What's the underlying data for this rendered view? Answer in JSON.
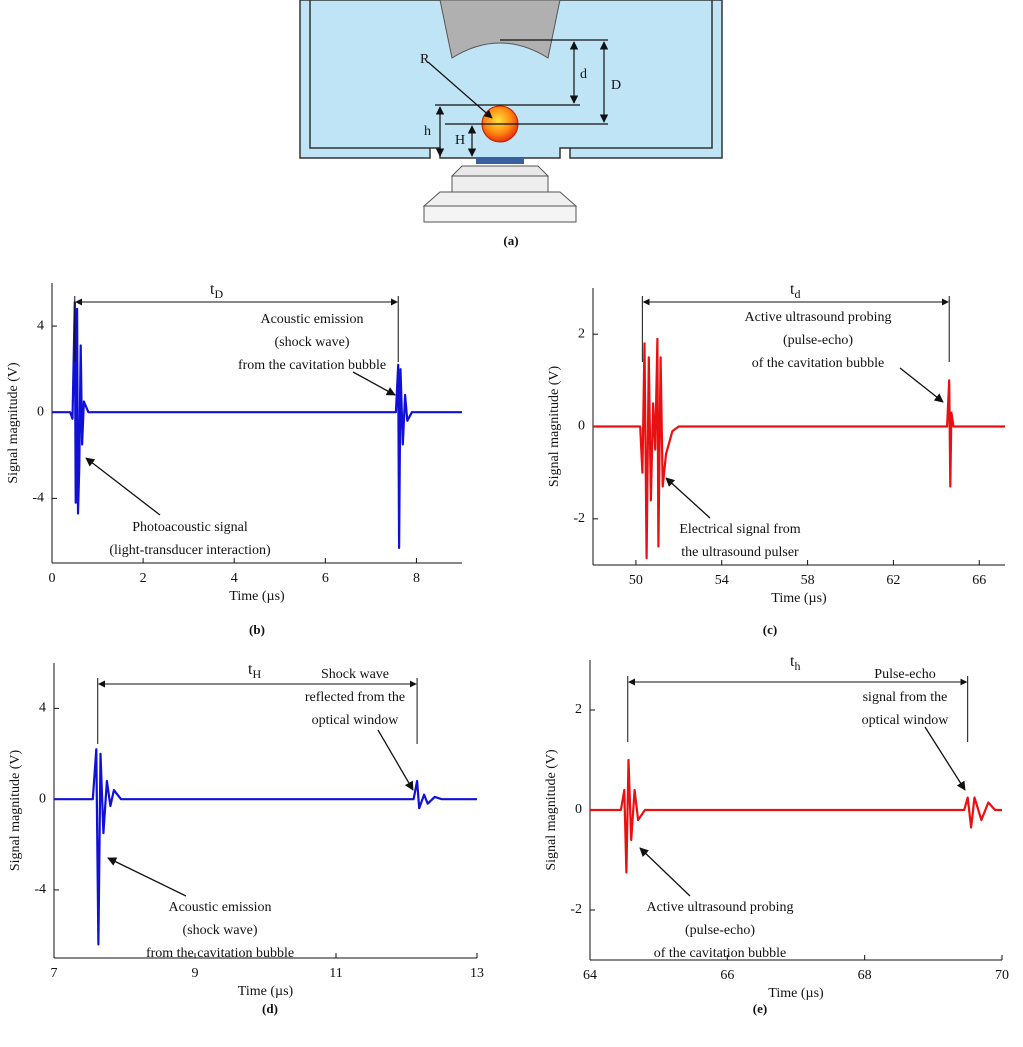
{
  "diagram": {
    "labels": [
      "R",
      "d",
      "D",
      "h",
      "H"
    ],
    "caption": "(a)"
  },
  "chart_data": [
    {
      "type": "line",
      "caption": "(b)",
      "xlabel": "Time (µs)",
      "ylabel": "Signal magnitude (V)",
      "xlim": [
        0,
        9
      ],
      "xticks": [
        0,
        2,
        4,
        6,
        8
      ],
      "ylim": [
        -7,
        6
      ],
      "yticks": [
        -4,
        0,
        4
      ],
      "x": [
        0,
        0.4,
        0.45,
        0.5,
        0.52,
        0.55,
        0.57,
        0.6,
        0.63,
        0.66,
        0.7,
        0.8,
        7.55,
        7.6,
        7.62,
        7.65,
        7.7,
        7.75,
        7.8,
        7.9,
        9
      ],
      "series": [
        {
          "color": "#1010d8",
          "values": [
            0,
            0,
            -0.3,
            5.1,
            -4.2,
            4.8,
            -4.7,
            -2.5,
            3.1,
            -1.5,
            0.5,
            0,
            0,
            2.2,
            -6.3,
            2.0,
            -1.5,
            0.8,
            -0.4,
            0,
            0
          ]
        }
      ],
      "interval": {
        "label": {
          "base": "t",
          "sub": "D"
        },
        "x": [
          0.5,
          7.6
        ]
      },
      "annotations": [
        {
          "lines": [
            "Acoustic emission",
            "(shock wave)",
            "from the cavitation bubble"
          ]
        },
        {
          "lines": [
            "Photoacoustic signal",
            "(light-transducer interaction)"
          ]
        }
      ]
    },
    {
      "type": "line",
      "caption": "(c)",
      "xlabel": "Time (µs)",
      "ylabel": "Signal magnitude (V)",
      "xlim": [
        48,
        67.2
      ],
      "xticks": [
        50,
        54,
        58,
        62,
        66
      ],
      "ylim": [
        -3,
        3
      ],
      "yticks": [
        -2,
        0,
        2
      ],
      "x": [
        48,
        50.2,
        50.3,
        50.4,
        50.5,
        50.6,
        50.7,
        50.8,
        50.9,
        51.0,
        51.05,
        51.15,
        51.25,
        51.4,
        51.7,
        52,
        64.5,
        64.6,
        64.65,
        64.7,
        64.8,
        67.2
      ],
      "series": [
        {
          "color": "#e81010",
          "values": [
            0,
            0,
            -1,
            1.8,
            -2.85,
            1.5,
            -1.6,
            0.5,
            -0.5,
            1.9,
            -2.6,
            1.5,
            -1.3,
            -0.6,
            -0.1,
            0,
            0,
            1.0,
            -1.3,
            0.3,
            0,
            0
          ]
        }
      ],
      "interval": {
        "label": {
          "base": "t",
          "sub": "d"
        },
        "x": [
          50.3,
          64.6
        ]
      },
      "annotations": [
        {
          "lines": [
            "Active ultrasound probing",
            "(pulse-echo)",
            "of the cavitation bubble"
          ]
        },
        {
          "lines": [
            "Electrical signal from",
            "the ultrasound pulser"
          ]
        }
      ]
    },
    {
      "type": "line",
      "caption": "(d)",
      "xlabel": "Time (µs)",
      "ylabel": "Signal magnitude (V)",
      "xlim": [
        7,
        13
      ],
      "xticks": [
        7,
        9,
        11,
        13
      ],
      "ylim": [
        -7,
        6
      ],
      "yticks": [
        -4,
        0,
        4
      ],
      "x": [
        7,
        7.55,
        7.6,
        7.63,
        7.66,
        7.7,
        7.75,
        7.8,
        7.85,
        7.95,
        12.1,
        12.15,
        12.18,
        12.25,
        12.3,
        12.4,
        12.5,
        13
      ],
      "series": [
        {
          "color": "#1010d8",
          "values": [
            0,
            0,
            2.2,
            -6.4,
            2.0,
            -1.5,
            0.8,
            -0.3,
            0.4,
            0,
            0,
            0.8,
            -0.4,
            0.2,
            -0.2,
            0.1,
            0,
            0
          ]
        }
      ],
      "interval": {
        "label": {
          "base": "t",
          "sub": "H"
        },
        "x": [
          7.62,
          12.15
        ]
      },
      "annotations": [
        {
          "lines": [
            "Shock wave",
            "reflected from the",
            "optical window"
          ]
        },
        {
          "lines": [
            "Acoustic emission",
            "(shock wave)",
            "from the cavitation bubble"
          ]
        }
      ]
    },
    {
      "type": "line",
      "caption": "(e)",
      "xlabel": "Time (µs)",
      "ylabel": "Signal magnitude (V)",
      "xlim": [
        64,
        70
      ],
      "xticks": [
        64,
        66,
        68,
        70
      ],
      "ylim": [
        -3,
        3
      ],
      "yticks": [
        -2,
        0,
        2
      ],
      "x": [
        64,
        64.45,
        64.5,
        64.53,
        64.56,
        64.6,
        64.65,
        64.7,
        64.8,
        69.45,
        69.5,
        69.55,
        69.6,
        69.7,
        69.8,
        69.9,
        70
      ],
      "series": [
        {
          "color": "#e81010",
          "values": [
            0,
            0,
            0.4,
            -1.25,
            1.0,
            -0.6,
            0.4,
            -0.2,
            0,
            0,
            0.25,
            -0.35,
            0.25,
            -0.2,
            0.15,
            0,
            0
          ]
        }
      ],
      "interval": {
        "label": {
          "base": "t",
          "sub": "h"
        },
        "x": [
          64.55,
          69.5
        ]
      },
      "annotations": [
        {
          "lines": [
            "Pulse-echo",
            "signal from the",
            "optical window"
          ]
        },
        {
          "lines": [
            "Active ultrasound probing",
            "(pulse-echo)",
            "of the cavitation bubble"
          ]
        }
      ]
    }
  ]
}
